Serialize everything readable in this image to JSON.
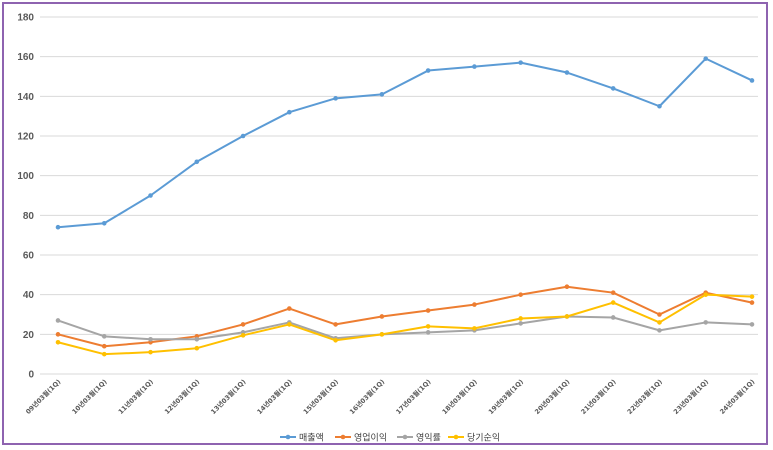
{
  "chart_data": {
    "type": "line",
    "title": "",
    "xlabel": "",
    "ylabel": "",
    "ylim": [
      0,
      180
    ],
    "yticks": [
      0,
      20,
      40,
      60,
      80,
      100,
      120,
      140,
      160,
      180
    ],
    "grid": true,
    "legend_position": "bottom",
    "categories": [
      "09년03월(1Q)",
      "10년03월(1Q)",
      "11년03월(1Q)",
      "12년03월(1Q)",
      "13년03월(1Q)",
      "14년03월(1Q)",
      "15년03월(1Q)",
      "16년03월(1Q)",
      "17년03월(1Q)",
      "18년03월(1Q)",
      "19년03월(1Q)",
      "20년03월(1Q)",
      "21년03월(1Q)",
      "22년03월(1Q)",
      "23년03월(1Q)",
      "24년03월(1Q)"
    ],
    "series": [
      {
        "name": "매출액",
        "color": "#5b9bd5",
        "values": [
          74,
          76,
          90,
          107,
          120,
          132,
          139,
          141,
          153,
          155,
          157,
          152,
          144,
          135,
          159,
          148
        ]
      },
      {
        "name": "영업이익",
        "color": "#ed7d31",
        "values": [
          20,
          14,
          16,
          19,
          25,
          33,
          25,
          29,
          32,
          35,
          40,
          44,
          41,
          30,
          41,
          36
        ]
      },
      {
        "name": "영익률",
        "color": "#a5a5a5",
        "values": [
          27,
          19,
          17.5,
          17.5,
          21,
          26,
          18,
          20,
          21,
          22,
          25.5,
          29,
          28.5,
          22,
          26,
          25
        ]
      },
      {
        "name": "당기순익",
        "color": "#ffc000",
        "values": [
          16,
          10,
          11,
          13,
          19.5,
          25,
          17,
          20,
          24,
          23,
          28,
          29,
          36,
          26,
          40,
          39
        ]
      }
    ]
  }
}
